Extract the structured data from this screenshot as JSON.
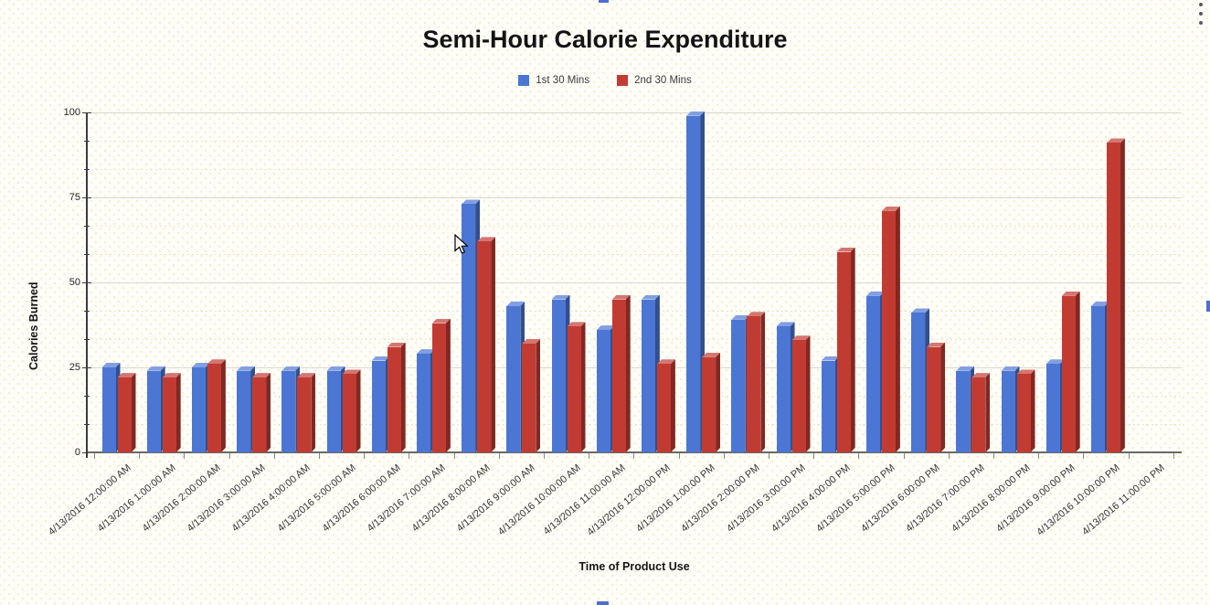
{
  "header": {
    "menu_icon": "kebab-menu"
  },
  "chart_data": {
    "type": "bar",
    "title": "Semi-Hour Calorie Expenditure",
    "xlabel": "Time of Product Use",
    "ylabel": "Calories Burned",
    "ylim": [
      0,
      100
    ],
    "yticks": [
      0,
      25,
      50,
      75,
      100
    ],
    "grid": true,
    "legend_position": "top",
    "categories": [
      "4/13/2016 12:00:00 AM",
      "4/13/2016 1:00:00 AM",
      "4/13/2016 2:00:00 AM",
      "4/13/2016 3:00:00 AM",
      "4/13/2016 4:00:00 AM",
      "4/13/2016 5:00:00 AM",
      "4/13/2016 6:00:00 AM",
      "4/13/2016 7:00:00 AM",
      "4/13/2016 8:00:00 AM",
      "4/13/2016 9:00:00 AM",
      "4/13/2016 10:00:00 AM",
      "4/13/2016 11:00:00 AM",
      "4/13/2016 12:00:00 PM",
      "4/13/2016 1:00:00 PM",
      "4/13/2016 2:00:00 PM",
      "4/13/2016 3:00:00 PM",
      "4/13/2016 4:00:00 PM",
      "4/13/2016 5:00:00 PM",
      "4/13/2016 6:00:00 PM",
      "4/13/2016 7:00:00 PM",
      "4/13/2016 8:00:00 PM",
      "4/13/2016 9:00:00 PM",
      "4/13/2016 10:00:00 PM",
      "4/13/2016 11:00:00 PM"
    ],
    "series": [
      {
        "name": "1st 30 Mins",
        "color": "#4b76d4",
        "values": [
          25,
          24,
          25,
          24,
          24,
          24,
          27,
          29,
          73,
          43,
          45,
          36,
          45,
          99,
          39,
          37,
          27,
          46,
          41,
          24,
          24,
          26,
          43,
          null
        ]
      },
      {
        "name": "2nd 30 Mins",
        "color": "#c23b32",
        "values": [
          22,
          22,
          26,
          22,
          22,
          23,
          31,
          38,
          62,
          32,
          37,
          45,
          26,
          28,
          40,
          33,
          59,
          71,
          31,
          22,
          23,
          46,
          91,
          null
        ]
      }
    ]
  }
}
